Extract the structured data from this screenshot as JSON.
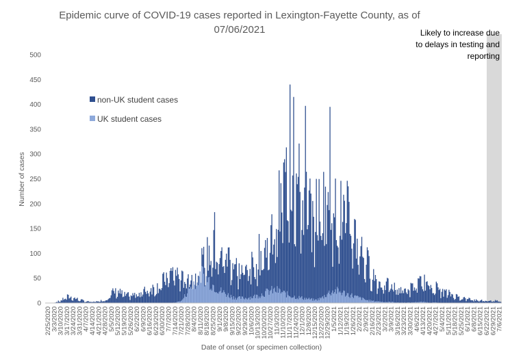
{
  "chart_data": {
    "type": "bar",
    "title": "Epidemic curve of COVID-19 cases reported in Lexington-Fayette County, as of 07/06/2021",
    "xlabel": "Date of onset (or specimen collection)",
    "ylabel": "Number of cases",
    "ylim": [
      0,
      500
    ],
    "yticks": [
      0,
      50,
      100,
      150,
      200,
      250,
      300,
      350,
      400,
      450,
      500
    ],
    "x_tick_labels": [
      "2/25/2020",
      "3/3/2020",
      "3/10/2020",
      "3/17/2020",
      "3/24/2020",
      "3/31/2020",
      "4/7/2020",
      "4/14/2020",
      "4/21/2020",
      "4/28/2020",
      "5/5/2020",
      "5/12/2020",
      "5/19/2020",
      "5/26/2020",
      "6/2/2020",
      "6/9/2020",
      "6/16/2020",
      "6/23/2020",
      "6/30/2020",
      "7/7/2020",
      "7/14/2020",
      "7/21/2020",
      "7/28/2020",
      "8/4/2020",
      "8/11/2020",
      "8/18/2020",
      "8/25/2020",
      "9/1/2020",
      "9/8/2020",
      "9/15/2020",
      "9/22/2020",
      "9/29/2020",
      "10/6/2020",
      "10/13/2020",
      "10/20/2020",
      "10/27/2020",
      "11/3/2020",
      "11/10/2020",
      "11/17/2020",
      "11/24/2020",
      "12/1/2020",
      "12/8/2020",
      "12/15/2020",
      "12/22/2020",
      "12/29/2020",
      "1/5/2021",
      "1/12/2021",
      "1/19/2021",
      "1/26/2021",
      "2/2/2021",
      "2/9/2021",
      "2/16/2021",
      "2/23/2021",
      "3/2/2021",
      "3/9/2021",
      "3/16/2021",
      "3/23/2021",
      "3/30/2021",
      "4/6/2021",
      "4/13/2021",
      "4/20/2021",
      "4/27/2021",
      "5/4/2021",
      "5/11/2021",
      "5/18/2021",
      "5/25/2021",
      "6/1/2021",
      "6/8/2021",
      "6/15/2021",
      "6/22/2021",
      "6/29/2021",
      "7/6/2021"
    ],
    "series": [
      {
        "name": "non-UK student cases",
        "color": "#2F4F8F",
        "weekly_avg_values": [
          0,
          1,
          5,
          12,
          10,
          6,
          3,
          2,
          4,
          6,
          20,
          22,
          15,
          14,
          18,
          22,
          28,
          30,
          40,
          55,
          60,
          45,
          50,
          55,
          70,
          90,
          100,
          85,
          95,
          80,
          60,
          65,
          70,
          90,
          100,
          120,
          160,
          220,
          260,
          230,
          200,
          180,
          170,
          190,
          210,
          180,
          170,
          165,
          140,
          110,
          80,
          55,
          40,
          35,
          30,
          28,
          25,
          28,
          35,
          40,
          35,
          30,
          22,
          18,
          14,
          10,
          8,
          6,
          5,
          5,
          5,
          3
        ],
        "notable_peaks": [
          {
            "x": "8/25/2020",
            "y": 183
          },
          {
            "x": "11/17/2020",
            "y": 440
          },
          {
            "x": "11/17/2020",
            "y": 415
          },
          {
            "x": "12/1/2020",
            "y": 397
          },
          {
            "x": "12/29/2020",
            "y": 395
          }
        ]
      },
      {
        "name": "UK student cases",
        "color": "#8EA9DB",
        "weekly_avg_values": [
          0,
          0,
          0,
          0,
          0,
          0,
          0,
          0,
          0,
          0,
          0,
          0,
          0,
          0,
          0,
          0,
          0,
          0,
          0,
          0,
          1,
          5,
          25,
          45,
          60,
          50,
          35,
          25,
          18,
          12,
          10,
          10,
          12,
          15,
          20,
          25,
          25,
          20,
          15,
          12,
          10,
          8,
          6,
          10,
          20,
          25,
          22,
          18,
          14,
          10,
          6,
          4,
          3,
          2,
          2,
          1,
          1,
          1,
          2,
          2,
          1,
          1,
          0,
          0,
          0,
          0,
          0,
          0,
          0,
          0,
          0,
          0
        ]
      }
    ],
    "annotation": "Likely to increase due to delays in testing and reporting",
    "shaded_region": {
      "from": "6/22/2021",
      "to": "7/6/2021",
      "color": "#D9D9D9"
    },
    "grid": false,
    "legend_position": "top-left"
  }
}
